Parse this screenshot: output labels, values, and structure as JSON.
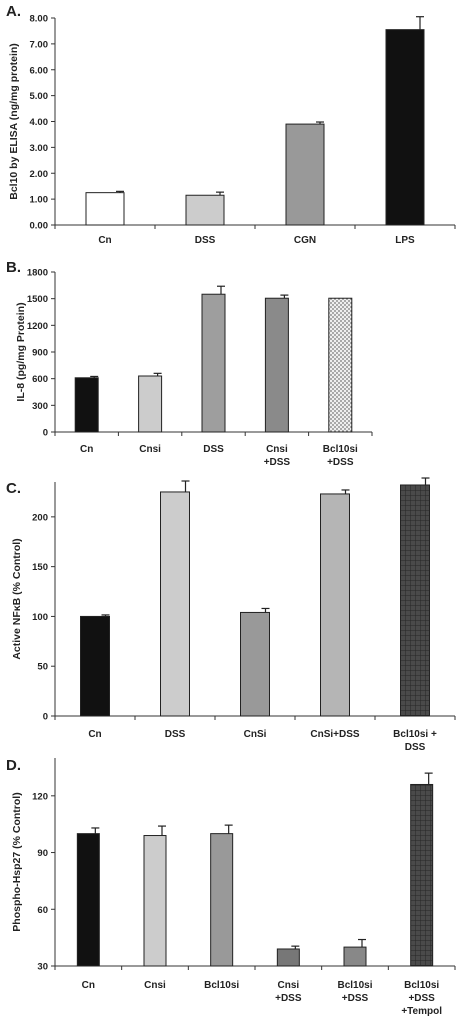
{
  "chart_data": [
    {
      "type": "bar",
      "panel": "A.",
      "ylabel": "Bcl10 by ELISA (ng/mg protein)",
      "ylim": [
        0,
        8
      ],
      "yticks": [
        0,
        1,
        2,
        3,
        4,
        5,
        6,
        7,
        8
      ],
      "ytick_labels": [
        "0.00",
        "1.00",
        "2.00",
        "3.00",
        "4.00",
        "5.00",
        "6.00",
        "7.00",
        "8.00"
      ],
      "categories": [
        [
          "Cn"
        ],
        [
          "DSS"
        ],
        [
          "CGN"
        ],
        [
          "LPS"
        ]
      ],
      "values": [
        1.25,
        1.15,
        3.9,
        7.55
      ],
      "errors": [
        0.05,
        0.12,
        0.08,
        0.5
      ],
      "bar_styles": [
        {
          "fill": "#ffffff",
          "pattern": "none"
        },
        {
          "fill": "#cccccc",
          "pattern": "none"
        },
        {
          "fill": "#999999",
          "pattern": "none"
        },
        {
          "fill": "#111111",
          "pattern": "none"
        }
      ]
    },
    {
      "type": "bar",
      "panel": "B.",
      "ylabel": "IL-8 (pg/mg Protein)",
      "ylim": [
        0,
        1800
      ],
      "yticks": [
        0,
        300,
        600,
        900,
        1200,
        1500,
        1800
      ],
      "ytick_labels": [
        "0",
        "300",
        "600",
        "900",
        "1200",
        "1500",
        "1800"
      ],
      "categories": [
        [
          "Cn"
        ],
        [
          "Cnsi"
        ],
        [
          "DSS"
        ],
        [
          "Cnsi",
          "+DSS"
        ],
        [
          "Bcl10si",
          "+DSS"
        ]
      ],
      "values": [
        610,
        630,
        1550,
        1505,
        1505
      ],
      "errors": [
        15,
        30,
        90,
        35,
        0
      ],
      "bar_styles": [
        {
          "fill": "#111111",
          "pattern": "none"
        },
        {
          "fill": "#cccccc",
          "pattern": "none"
        },
        {
          "fill": "#9e9e9e",
          "pattern": "none"
        },
        {
          "fill": "#8a8a8a",
          "pattern": "none"
        },
        {
          "fill": "#e6e6e6",
          "pattern": "dots"
        }
      ]
    },
    {
      "type": "bar",
      "panel": "C.",
      "ylabel": "Active NFκB (% Control)",
      "ylim": [
        0,
        235
      ],
      "yticks": [
        0,
        50,
        100,
        150,
        200
      ],
      "ytick_labels": [
        "0",
        "50",
        "100",
        "150",
        "200"
      ],
      "categories": [
        [
          "Cn"
        ],
        [
          "DSS"
        ],
        [
          "CnSi"
        ],
        [
          "CnSi+DSS"
        ],
        [
          "Bcl10si +",
          "DSS"
        ]
      ],
      "values": [
        100,
        225,
        104,
        223,
        232
      ],
      "errors": [
        1.5,
        11,
        4,
        4,
        7
      ],
      "bar_styles": [
        {
          "fill": "#111111",
          "pattern": "none"
        },
        {
          "fill": "#cccccc",
          "pattern": "none"
        },
        {
          "fill": "#999999",
          "pattern": "none"
        },
        {
          "fill": "#b5b5b5",
          "pattern": "none"
        },
        {
          "fill": "#444444",
          "pattern": "grid"
        }
      ]
    },
    {
      "type": "bar",
      "panel": "D.",
      "ylabel": "Phospho-Hsp27 (% Control)",
      "ylim": [
        30,
        140
      ],
      "yticks": [
        30,
        60,
        90,
        120
      ],
      "ytick_labels": [
        "30",
        "60",
        "90",
        "120"
      ],
      "categories": [
        [
          "Cn"
        ],
        [
          "Cnsi"
        ],
        [
          "Bcl10si"
        ],
        [
          "Cnsi",
          "+DSS"
        ],
        [
          "Bcl10si",
          "+DSS"
        ],
        [
          "Bcl10si",
          "+DSS",
          "+Tempol"
        ]
      ],
      "values": [
        100,
        99,
        100,
        39,
        40,
        126
      ],
      "errors": [
        3,
        5,
        4.5,
        1.5,
        4,
        6
      ],
      "bar_styles": [
        {
          "fill": "#111111",
          "pattern": "none"
        },
        {
          "fill": "#cccccc",
          "pattern": "none"
        },
        {
          "fill": "#999999",
          "pattern": "none"
        },
        {
          "fill": "#777777",
          "pattern": "none"
        },
        {
          "fill": "#888888",
          "pattern": "none"
        },
        {
          "fill": "#444444",
          "pattern": "grid"
        }
      ]
    }
  ]
}
